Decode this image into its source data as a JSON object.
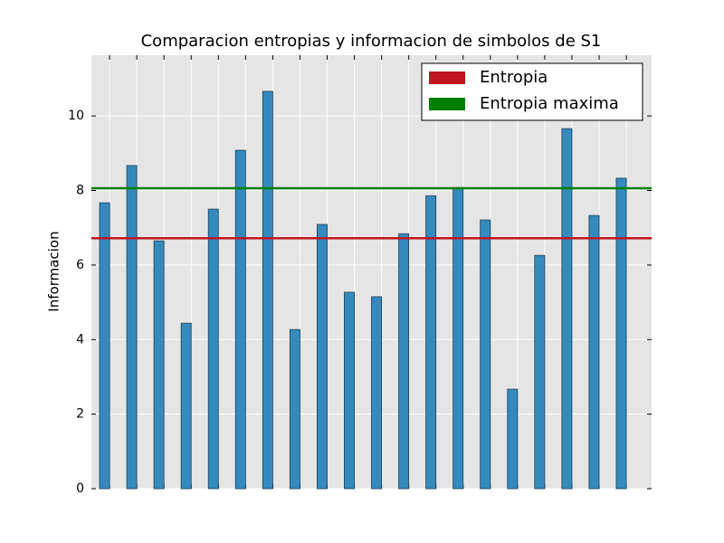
{
  "chart_data": {
    "type": "bar",
    "title": "Comparacion entropias y informacion de simbolos de S1",
    "ylabel": "Informacion",
    "categories": [
      null,
      null,
      null,
      null,
      null,
      null,
      null,
      null,
      null,
      null,
      null,
      null,
      null,
      null,
      null,
      null,
      null,
      null,
      null,
      null
    ],
    "values": [
      7.67,
      8.67,
      6.65,
      4.44,
      7.5,
      9.08,
      10.66,
      4.27,
      7.09,
      5.27,
      5.15,
      6.84,
      7.86,
      8.08,
      7.21,
      2.67,
      6.26,
      9.66,
      7.33,
      8.33
    ],
    "color": "#348abd",
    "ylim": [
      0,
      11.63
    ],
    "yticks": [
      0,
      2,
      4,
      6,
      8,
      10
    ],
    "grid": true,
    "hlines": [
      {
        "name": "Entropia",
        "color": "#c0151f",
        "value": 6.72
      },
      {
        "name": "Entropia maxima",
        "color": "#008000",
        "value": 8.06
      }
    ],
    "legend": "upper right"
  }
}
